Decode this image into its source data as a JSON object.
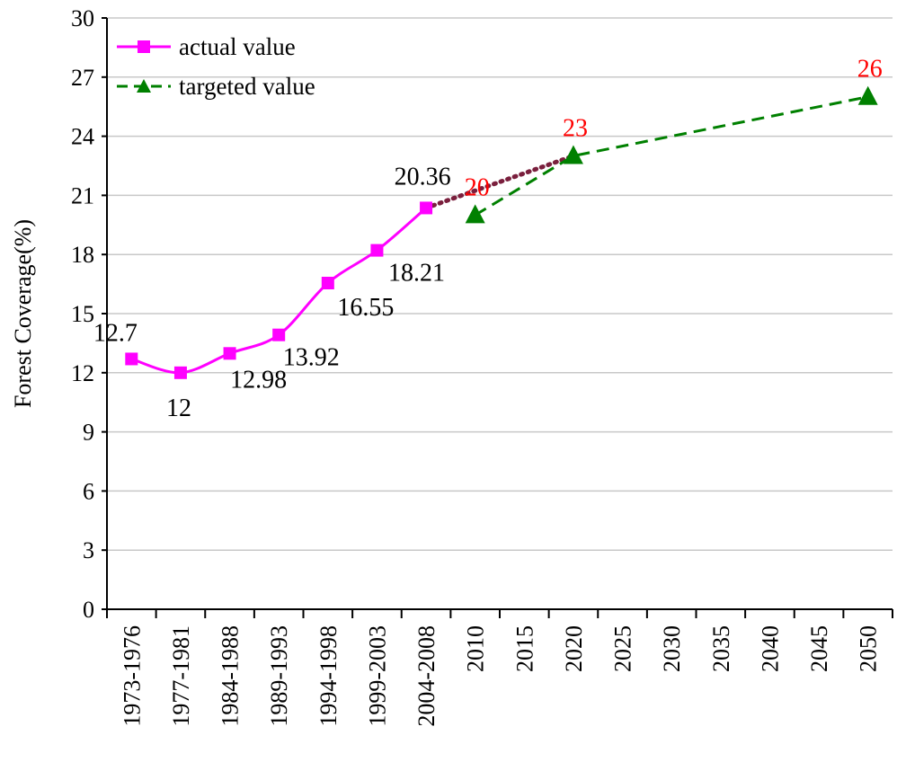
{
  "chart_data": {
    "type": "line",
    "title": "",
    "xlabel": "",
    "ylabel": "Forest Coverage(%)",
    "ylim": [
      0,
      30
    ],
    "yticks": [
      0,
      3,
      6,
      9,
      12,
      15,
      18,
      21,
      24,
      27,
      30
    ],
    "grid": true,
    "legend_position": "top-left",
    "categories": [
      "1973-1976",
      "1977-1981",
      "1984-1988",
      "1989-1993",
      "1994-1998",
      "1999-2003",
      "2004-2008",
      "2010",
      "2015",
      "2020",
      "2025",
      "2030",
      "2035",
      "2040",
      "2045",
      "2050"
    ],
    "series": [
      {
        "name": "actual value",
        "color": "#ff00ff",
        "marker": "square",
        "line_style": "solid",
        "points": [
          {
            "x": "1973-1976",
            "y": 12.7,
            "label": "12.7"
          },
          {
            "x": "1977-1981",
            "y": 12,
            "label": "12"
          },
          {
            "x": "1984-1988",
            "y": 12.98,
            "label": "12.98"
          },
          {
            "x": "1989-1993",
            "y": 13.92,
            "label": "13.92"
          },
          {
            "x": "1994-1998",
            "y": 16.55,
            "label": "16.55"
          },
          {
            "x": "1999-2003",
            "y": 18.21,
            "label": "18.21"
          },
          {
            "x": "2004-2008",
            "y": 20.36,
            "label": "20.36"
          }
        ]
      },
      {
        "name": "targeted value",
        "color": "#008000",
        "label_color": "#ff0000",
        "marker": "triangle",
        "line_style": "dashed",
        "points": [
          {
            "x": "2010",
            "y": 20,
            "label": "20"
          },
          {
            "x": "2020",
            "y": 23,
            "label": "23"
          },
          {
            "x": "2050",
            "y": 26,
            "label": "26"
          }
        ]
      }
    ],
    "connector": {
      "color": "#7a1f3d",
      "line_style": "dotted",
      "from": {
        "x": "2004-2008",
        "y": 20.36
      },
      "to": {
        "x": "2020",
        "y": 23
      }
    }
  }
}
